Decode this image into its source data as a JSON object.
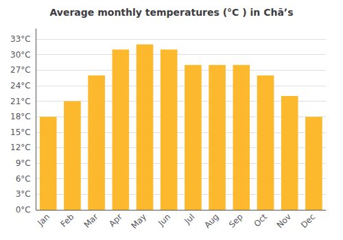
{
  "chart_data": {
    "type": "bar",
    "title": "Average monthly temperatures (°C ) in Chāʼs",
    "categories": [
      "Jan",
      "Feb",
      "Mar",
      "Apr",
      "May",
      "Jun",
      "Jul",
      "Aug",
      "Sep",
      "Oct",
      "Nov",
      "Dec"
    ],
    "values": [
      18,
      21,
      26,
      31,
      32,
      31,
      28,
      28,
      28,
      26,
      22,
      18
    ],
    "color": "#FDB92E",
    "ylim": [
      0,
      35
    ],
    "yticks": [
      {
        "value": 0,
        "label": "0°C"
      },
      {
        "value": 3,
        "label": "3°C"
      },
      {
        "value": 6,
        "label": "6°C"
      },
      {
        "value": 9,
        "label": "9°C"
      },
      {
        "value": 12,
        "label": "12°C"
      },
      {
        "value": 15,
        "label": "15°C"
      },
      {
        "value": 18,
        "label": "18°C"
      },
      {
        "value": 21,
        "label": "21°C"
      },
      {
        "value": 24,
        "label": "24°C"
      },
      {
        "value": 27,
        "label": "27°C"
      },
      {
        "value": 30,
        "label": "30°C"
      },
      {
        "value": 33,
        "label": "33°C"
      }
    ],
    "grid": true
  }
}
